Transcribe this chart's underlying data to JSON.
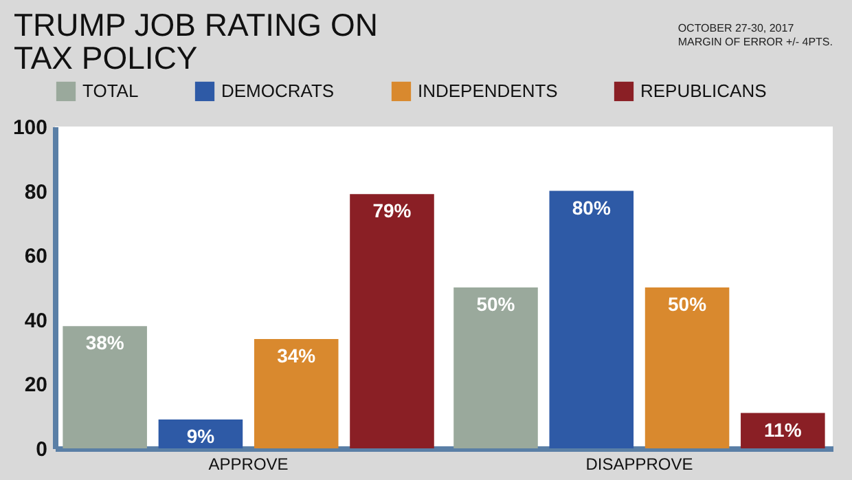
{
  "chart_data": {
    "type": "bar",
    "title": "TRUMP JOB RATING ON TAX POLICY",
    "annotations": [
      "OCTOBER 27-30, 2017",
      "MARGIN OF ERROR +/- 4PTS."
    ],
    "categories": [
      "APPROVE",
      "DISAPPROVE"
    ],
    "series": [
      {
        "name": "TOTAL",
        "color": "#9aa99c",
        "values": [
          38,
          50
        ],
        "value_labels": [
          "38%",
          "50%"
        ]
      },
      {
        "name": "DEMOCRATS",
        "color": "#2e5aa6",
        "values": [
          9,
          80
        ],
        "value_labels": [
          "9%",
          "80%"
        ]
      },
      {
        "name": "INDEPENDENTS",
        "color": "#d9892e",
        "values": [
          34,
          50
        ],
        "value_labels": [
          "34%",
          "50%"
        ]
      },
      {
        "name": "REPUBLICANS",
        "color": "#8a1f25",
        "values": [
          79,
          11
        ],
        "value_labels": [
          "79%",
          "11%"
        ]
      }
    ],
    "ylim": [
      0,
      100
    ],
    "yticks": [
      0,
      20,
      40,
      60,
      80,
      100
    ],
    "grid": false,
    "legend": "top",
    "data_labels": true
  }
}
